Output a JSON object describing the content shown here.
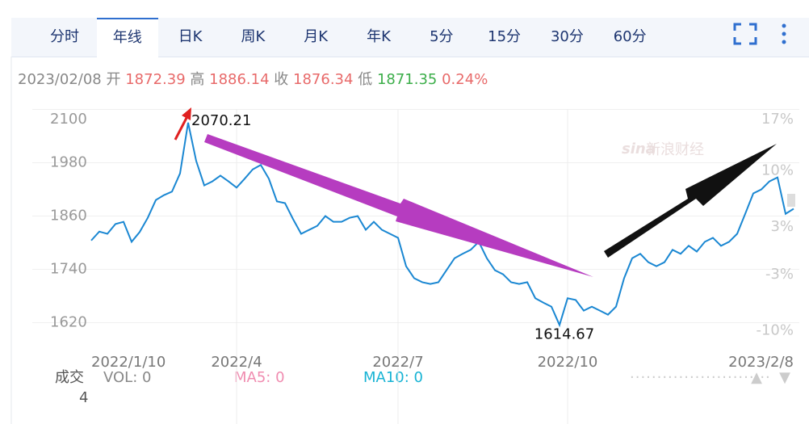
{
  "tabs": [
    "分时",
    "年线",
    "日K",
    "周K",
    "月K",
    "年K",
    "5分",
    "15分",
    "30分",
    "60分"
  ],
  "quote": {
    "date": "2023/02/08",
    "open_label": "开",
    "open": "1872.39",
    "high_label": "高",
    "high": "1886.14",
    "close_label": "收",
    "close": "1876.34",
    "low_label": "低",
    "low": "1871.35",
    "change": "0.24%"
  },
  "watermark": {
    "logo": "sina",
    "name": "新浪财经"
  },
  "volume": {
    "label": "成交",
    "scale": "4",
    "vol": "VOL: 0",
    "ma5": "MA5: 0",
    "ma10": "MA10: 0"
  },
  "chart_data": {
    "type": "line",
    "categories": [
      "2022/1/10",
      null,
      null,
      null,
      null,
      null,
      null,
      null,
      null,
      null,
      null,
      null,
      null,
      null,
      null,
      null,
      null,
      null,
      "2022/4",
      null,
      null,
      null,
      null,
      null,
      null,
      null,
      null,
      null,
      null,
      null,
      null,
      null,
      null,
      null,
      null,
      null,
      null,
      null,
      "2022/7",
      null,
      null,
      null,
      null,
      null,
      null,
      null,
      null,
      null,
      null,
      null,
      null,
      null,
      null,
      null,
      null,
      null,
      null,
      null,
      null,
      "2022/10",
      null,
      null,
      null,
      null,
      null,
      null,
      null,
      null,
      null,
      null,
      null,
      null,
      null,
      null,
      null,
      null,
      null,
      null,
      null,
      null,
      null,
      null,
      null,
      null,
      null,
      null,
      null,
      "2023/2/8"
    ],
    "series": [
      {
        "color": "#1a87d2",
        "values": [
          1805,
          1825,
          1820,
          1842,
          1847,
          1802,
          1824,
          1856,
          1896,
          1907,
          1915,
          1956,
          2070.21,
          1984,
          1929,
          1938,
          1951,
          1938,
          1924,
          1944,
          1965,
          1975,
          1944,
          1893,
          1889,
          1853,
          1820,
          1829,
          1838,
          1860,
          1847,
          1847,
          1856,
          1860,
          1829,
          1847,
          1829,
          1820,
          1811,
          1747,
          1720,
          1711,
          1707,
          1711,
          1738,
          1765,
          1775,
          1784,
          1802,
          1765,
          1738,
          1729,
          1711,
          1707,
          1711,
          1675,
          1665,
          1656,
          1614.67,
          1675,
          1671,
          1647,
          1656,
          1647,
          1638,
          1656,
          1720,
          1765,
          1775,
          1756,
          1747,
          1756,
          1784,
          1775,
          1793,
          1780,
          1802,
          1811,
          1793,
          1802,
          1820,
          1865,
          1911,
          1920,
          1938,
          1947,
          1865,
          1876.34
        ]
      }
    ],
    "labeled_points": [
      12,
      58
    ],
    "ylim": [
      1570,
      2110
    ],
    "yticks": [
      1620,
      1740,
      1860,
      1980,
      2100
    ],
    "y2lim": [
      -12.78,
      17.22
    ],
    "y2ticks": [
      {
        "value": -10,
        "label": "-10%"
      },
      {
        "value": -3,
        "label": "-3%"
      },
      {
        "value": 3,
        "label": "3%"
      },
      {
        "value": 10,
        "label": "10%"
      },
      {
        "value": 17,
        "label": "17%"
      }
    ],
    "grid": true
  }
}
